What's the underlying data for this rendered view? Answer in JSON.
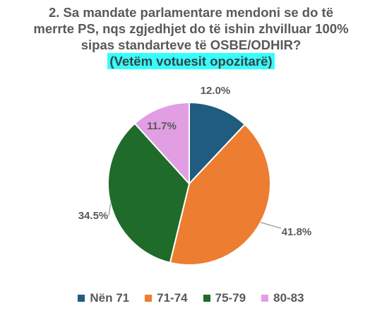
{
  "title": {
    "line1": "2. Sa mandate parlamentare mendoni se do të",
    "line2": "merrte PS, nqs zgjedhjet do të ishin zhvilluar 100%",
    "line3": "sipas standarteve të OSBE/ODHIR?",
    "subtitle": "(Vetëm votuesit opozitarë)"
  },
  "chart_data": {
    "type": "pie",
    "title": "2. Sa mandate parlamentare mendoni se do të merrte PS, nqs zgjedhjet do të ishin zhvilluar 100% sipas standarteve të OSBE/ODHIR? (Vetëm votuesit opozitarë)",
    "categories": [
      "Nën 71",
      "71-74",
      "75-79",
      "80-83"
    ],
    "values": [
      12.0,
      41.8,
      34.5,
      11.7
    ],
    "labels": [
      "12.0%",
      "41.8%",
      "34.5%",
      "11.7%"
    ],
    "colors": [
      "#1f5c7f",
      "#ed7d31",
      "#1e6b2a",
      "#e29ee2"
    ],
    "legend_position": "bottom"
  }
}
